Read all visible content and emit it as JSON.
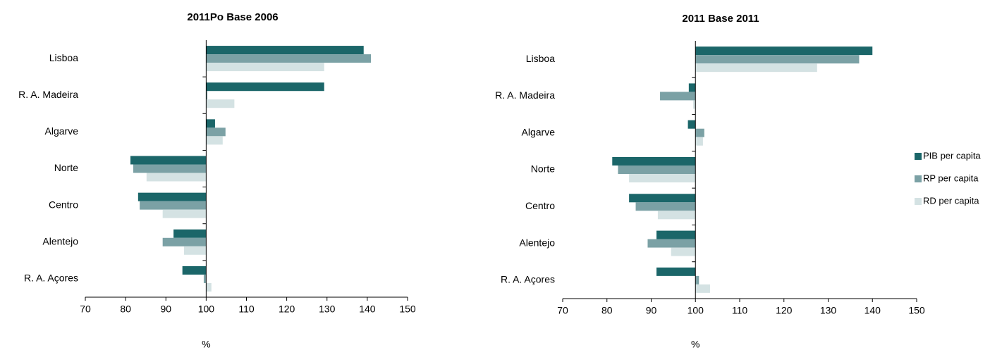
{
  "chart_data": [
    {
      "type": "bar",
      "orientation": "horizontal",
      "title": "2011Po Base 2006",
      "xlabel": "%",
      "categories": [
        "Lisboa",
        "R. A. Madeira",
        "Algarve",
        "Norte",
        "Centro",
        "Alentejo",
        "R. A. Açores"
      ],
      "series": [
        {
          "color": "#1b6669",
          "values": [
            139.1,
            129.3,
            102.2,
            81.2,
            83.1,
            91.9,
            94.1
          ]
        },
        {
          "color": "#7ba1a5",
          "values": [
            140.9,
            100.3,
            104.8,
            81.9,
            83.5,
            89.2,
            99.4
          ]
        },
        {
          "color": "#d4e2e3",
          "values": [
            129.3,
            107.0,
            104.1,
            85.2,
            89.2,
            94.5,
            101.3
          ]
        }
      ],
      "baseline": 100,
      "xlim": [
        70,
        150
      ],
      "xticks": [
        70,
        80,
        90,
        100,
        110,
        120,
        130,
        140,
        150
      ]
    },
    {
      "type": "bar",
      "orientation": "horizontal",
      "title": "2011 Base 2011",
      "xlabel": "%",
      "categories": [
        "Lisboa",
        "R. A. Madeira",
        "Algarve",
        "Norte",
        "Centro",
        "Alentejo",
        "R. A. Açores"
      ],
      "series": [
        {
          "name": "PIB per capita",
          "color": "#1b6669",
          "values": [
            140.0,
            98.5,
            98.3,
            81.2,
            85.0,
            91.2,
            91.2
          ]
        },
        {
          "name": "RP per capita",
          "color": "#7ba1a5",
          "values": [
            137.0,
            92.0,
            102.0,
            82.5,
            86.5,
            89.2,
            100.8
          ]
        },
        {
          "name": "RD per capita",
          "color": "#d4e2e3",
          "values": [
            127.5,
            99.5,
            101.7,
            85.0,
            91.5,
            94.5,
            103.3
          ]
        }
      ],
      "baseline": 100,
      "xlim": [
        70,
        150
      ],
      "xticks": [
        70,
        80,
        90,
        100,
        110,
        120,
        130,
        140,
        150
      ],
      "legend": "right"
    }
  ]
}
